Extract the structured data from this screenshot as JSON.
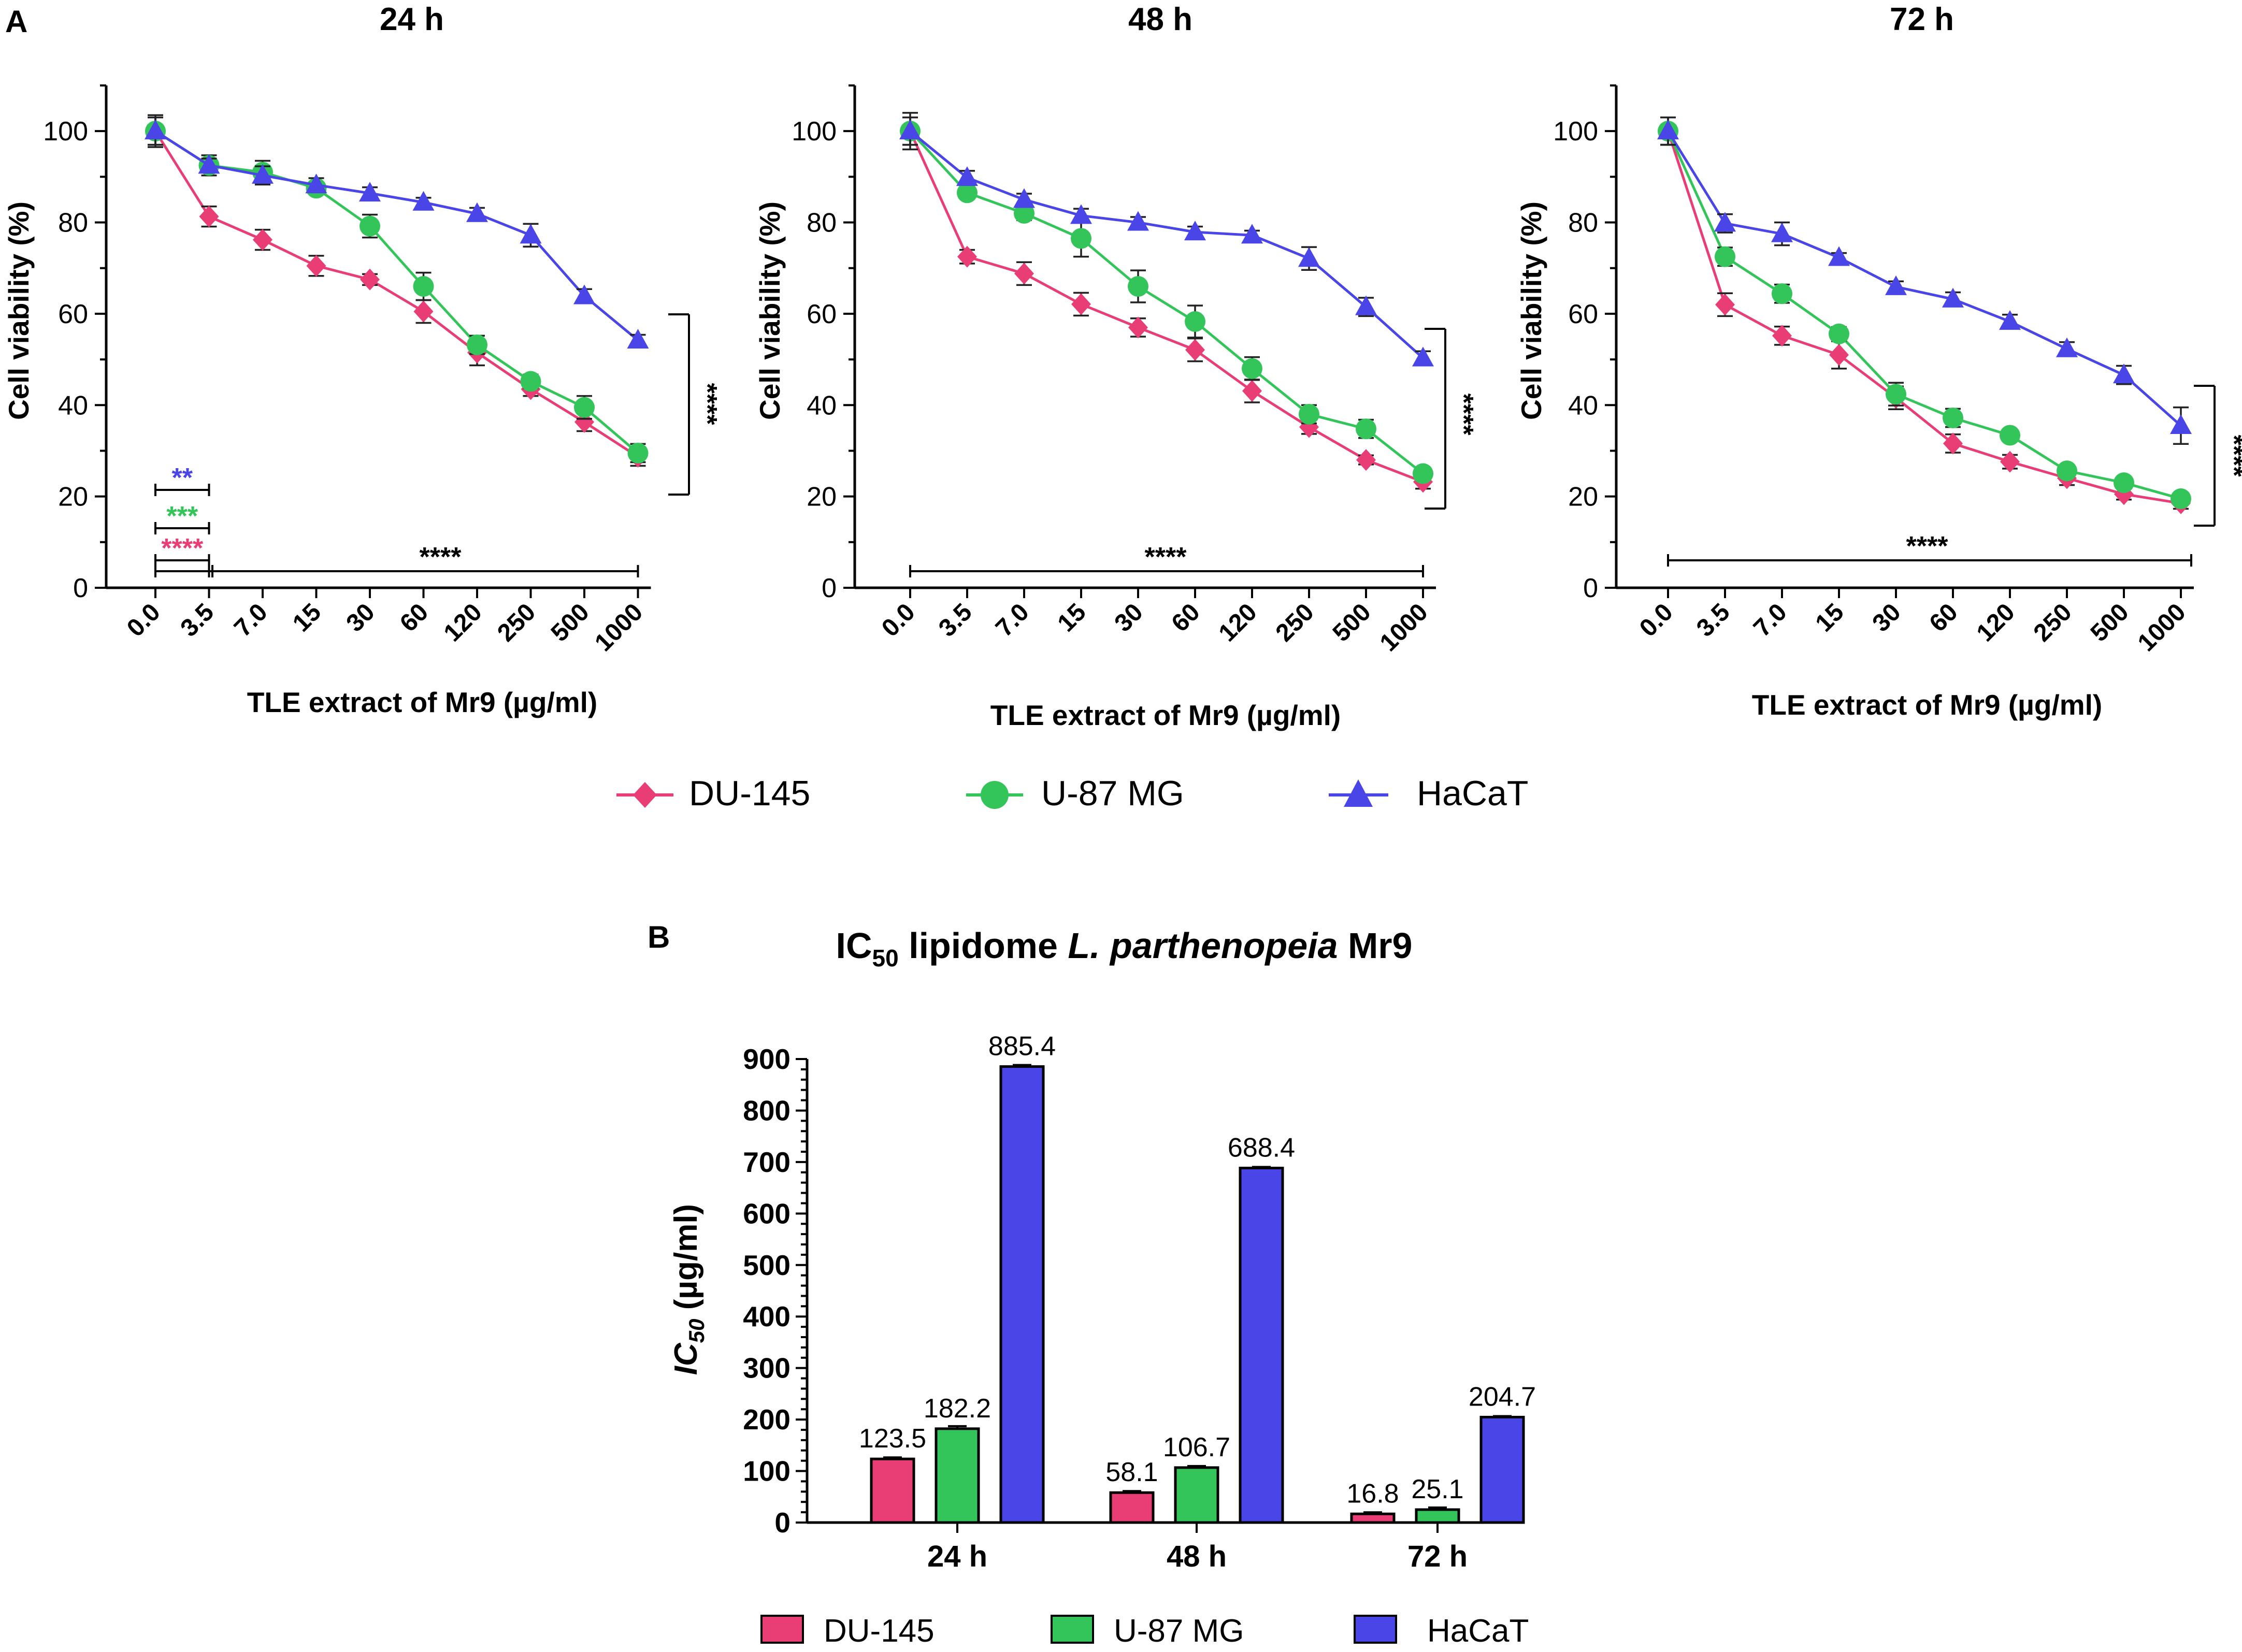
{
  "panel_labels": {
    "a": "A",
    "b": "B"
  },
  "colors": {
    "du145": "#e83e75",
    "u87": "#33c45a",
    "hacat": "#4a45e6",
    "axis": "#000000"
  },
  "legend_a": [
    {
      "name": "DU-145",
      "marker": "diamond",
      "color": "#e83e75"
    },
    {
      "name": "U-87 MG",
      "marker": "circle",
      "color": "#33c45a"
    },
    {
      "name": "HaCaT",
      "marker": "triangle",
      "color": "#4a45e6"
    }
  ],
  "legend_b": [
    {
      "name": "DU-145",
      "color": "#e83e75"
    },
    {
      "name": "U-87 MG",
      "color": "#33c45a"
    },
    {
      "name": "HaCaT",
      "color": "#4a45e6"
    }
  ],
  "chart_data": [
    {
      "type": "line",
      "title": "24 h",
      "xlabel": "TLE extract of Mr9 (µg/ml)",
      "ylabel": "Cell viability (%)",
      "ylim": [
        0,
        110
      ],
      "yticks": [
        0,
        20,
        40,
        60,
        80,
        100
      ],
      "categories": [
        "0.0",
        "3.5",
        "7.0",
        "15",
        "30",
        "60",
        "120",
        "250",
        "500",
        "1000"
      ],
      "series": [
        {
          "name": "DU-145",
          "key": "du145",
          "values": [
            100,
            81.3,
            76.2,
            70.5,
            67.5,
            60.5,
            51.5,
            43.5,
            36.3,
            28.7
          ],
          "errors": [
            3,
            2.2,
            2.2,
            2.2,
            1.2,
            2.5,
            2.8,
            1.5,
            2,
            2
          ]
        },
        {
          "name": "U-87 MG",
          "key": "u87",
          "values": [
            100,
            92.5,
            91,
            87.5,
            79.2,
            66,
            53.2,
            45.2,
            39.5,
            29.5
          ],
          "errors": [
            3,
            2.2,
            2.5,
            1.2,
            2.5,
            3,
            2,
            1.5,
            2.5,
            2
          ]
        },
        {
          "name": "HaCaT",
          "key": "hacat",
          "values": [
            100,
            92.5,
            90.3,
            88.2,
            86.4,
            84.4,
            81.9,
            77.2,
            63.9,
            54.2
          ],
          "errors": [
            3.5,
            1.5,
            2,
            1.5,
            1.3,
            1,
            1.3,
            2.5,
            1.5,
            1.2
          ]
        }
      ],
      "annotations": [
        {
          "text": "**",
          "color": "#4a45e6"
        },
        {
          "text": "***",
          "color": "#33c45a"
        },
        {
          "text": "****",
          "color": "#e83e75"
        },
        {
          "text": "****",
          "color": "#000000"
        },
        {
          "text": "****",
          "color": "#000000"
        }
      ]
    },
    {
      "type": "line",
      "title": "48 h",
      "xlabel": "TLE extract of Mr9 (µg/ml)",
      "ylabel": "Cell viability (%)",
      "ylim": [
        0,
        110
      ],
      "yticks": [
        0,
        20,
        40,
        60,
        80,
        100
      ],
      "categories": [
        "0.0",
        "3.5",
        "7.0",
        "15",
        "30",
        "60",
        "120",
        "250",
        "500",
        "1000"
      ],
      "series": [
        {
          "name": "DU-145",
          "key": "du145",
          "values": [
            100,
            72.5,
            68.8,
            62.1,
            57,
            52.1,
            43.1,
            35.2,
            28,
            23.2
          ],
          "errors": [
            3,
            1.5,
            2.5,
            2.5,
            2,
            2.5,
            2.5,
            1.5,
            1,
            1.5
          ]
        },
        {
          "name": "U-87 MG",
          "key": "u87",
          "values": [
            100,
            86.5,
            82,
            76.5,
            66,
            58.3,
            48,
            38,
            34.8,
            25
          ],
          "errors": [
            3,
            1,
            1.5,
            4,
            3.5,
            3.5,
            2.5,
            2,
            2,
            1.2
          ]
        },
        {
          "name": "HaCaT",
          "key": "hacat",
          "values": [
            100,
            89.8,
            85,
            81.5,
            80,
            77.9,
            77.2,
            72.1,
            61.5,
            50.3
          ],
          "errors": [
            4,
            1.5,
            1.3,
            1.5,
            1.2,
            1.2,
            1,
            2.5,
            2,
            1.5
          ]
        }
      ],
      "annotations": [
        {
          "text": "****",
          "color": "#000000"
        },
        {
          "text": "****",
          "color": "#000000"
        }
      ]
    },
    {
      "type": "line",
      "title": "72 h",
      "xlabel": "TLE extract of Mr9 (µg/ml)",
      "ylabel": "Cell viability (%)",
      "ylim": [
        0,
        110
      ],
      "yticks": [
        0,
        20,
        40,
        60,
        80,
        100
      ],
      "categories": [
        "0.0",
        "3.5",
        "7.0",
        "15",
        "30",
        "60",
        "120",
        "250",
        "500",
        "1000"
      ],
      "series": [
        {
          "name": "DU-145",
          "key": "du145",
          "values": [
            100,
            62,
            55.2,
            51,
            41.6,
            31.6,
            27.6,
            24,
            20.5,
            18.5
          ],
          "errors": [
            3,
            2.5,
            2,
            3,
            2.5,
            2,
            1.5,
            1.5,
            1.2,
            1.2
          ]
        },
        {
          "name": "U-87 MG",
          "key": "u87",
          "values": [
            100,
            72.5,
            64.4,
            55.6,
            42.4,
            37.2,
            33.4,
            25.6,
            23,
            19.5
          ],
          "errors": [
            3,
            2,
            2,
            1.5,
            2.5,
            2,
            1,
            1.2,
            1,
            1
          ]
        },
        {
          "name": "HaCaT",
          "key": "hacat",
          "values": [
            100,
            79.8,
            77.5,
            72.3,
            65.9,
            63.2,
            58.3,
            52.3,
            46.6,
            35.5
          ],
          "errors": [
            3,
            2,
            2.5,
            1,
            1.2,
            1.5,
            1.5,
            1.5,
            2,
            4
          ]
        }
      ],
      "annotations": [
        {
          "text": "****",
          "color": "#000000"
        },
        {
          "text": "****",
          "color": "#000000"
        }
      ]
    },
    {
      "type": "bar",
      "title_parts": {
        "pre": "IC",
        "sub": "50",
        "mid": " lipidome ",
        "italic": "L. parthenopeia",
        "post": " Mr9"
      },
      "ylabel_parts": {
        "main": "IC",
        "sub": "50",
        "rest": " (µg/ml)"
      },
      "categories": [
        "24 h",
        "48 h",
        "72 h"
      ],
      "ylim": [
        0,
        900
      ],
      "yticks": [
        0,
        100,
        200,
        300,
        400,
        500,
        600,
        700,
        800,
        900
      ],
      "series": [
        {
          "name": "DU-145",
          "key": "du145",
          "values": [
            123.5,
            58.1,
            16.8
          ],
          "errors": [
            3,
            3,
            3
          ]
        },
        {
          "name": "U-87 MG",
          "key": "u87",
          "values": [
            182.2,
            106.7,
            25.1
          ],
          "errors": [
            5,
            3,
            4
          ]
        },
        {
          "name": "HaCaT",
          "key": "hacat",
          "values": [
            885.4,
            688.4,
            204.7
          ],
          "errors": [
            3,
            2,
            2
          ]
        }
      ],
      "data_labels": [
        [
          "123.5",
          "58.1",
          "16.8"
        ],
        [
          "182.2",
          "106.7",
          "25.1"
        ],
        [
          "885.4",
          "688.4",
          "204.7"
        ]
      ]
    }
  ]
}
